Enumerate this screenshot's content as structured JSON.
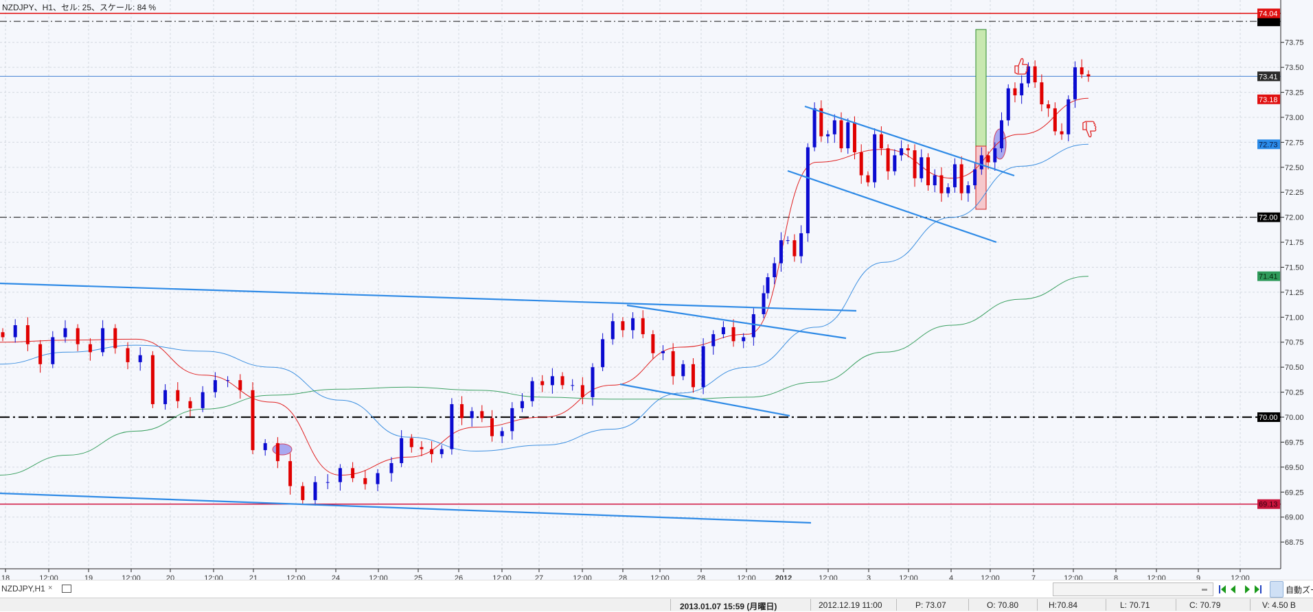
{
  "chart_title": "NZDJPY、H1、セル: 25、スケール: 84 %",
  "colors": {
    "background": "#f5f7fc",
    "up_candle": "#0a0ad0",
    "down_candle": "#e00000",
    "ma_fast": "#e02020",
    "ma_mid": "#3a8ee0",
    "ma_slow": "#3aa060",
    "trendline": "#2e8ae6"
  },
  "chart_data": {
    "type": "candlestick",
    "symbol": "NZDJPY",
    "timeframe": "H1",
    "ylim": [
      68.6,
      74.1
    ],
    "grid": true,
    "price_ticks": [
      "68.75",
      "69.00",
      "69.25",
      "69.50",
      "69.75",
      "70.00",
      "70.25",
      "70.50",
      "70.75",
      "71.00",
      "71.25",
      "71.50",
      "71.75",
      "72.00",
      "72.25",
      "72.50",
      "72.75",
      "73.00",
      "73.25",
      "73.50",
      "73.75"
    ],
    "time_ticks": [
      "18",
      "12:00",
      "19",
      "12:00",
      "20",
      "12:00",
      "21",
      "12:00",
      "24",
      "12:00",
      "25",
      "26",
      "12:00",
      "27",
      "12:00",
      "28",
      "12:00",
      "28",
      "12:00",
      "2012",
      "12:00",
      "3",
      "12:00",
      "4",
      "12:00",
      "7",
      "12:00",
      "8",
      "12:00",
      "9",
      "12:00"
    ],
    "closes": [
      70.8,
      70.92,
      70.73,
      70.53,
      70.8,
      70.89,
      70.73,
      70.65,
      70.89,
      70.69,
      70.55,
      70.62,
      70.13,
      70.27,
      70.16,
      70.09,
      70.25,
      70.37,
      70.37,
      70.27,
      69.67,
      69.74,
      69.56,
      69.31,
      69.17,
      69.35,
      69.35,
      69.49,
      69.39,
      69.33,
      69.44,
      69.54,
      69.79,
      69.7,
      69.68,
      69.63,
      69.68,
      70.13,
      69.99,
      70.06,
      69.99,
      69.81,
      69.86,
      70.09,
      70.16,
      70.36,
      70.32,
      70.41,
      70.32,
      70.32,
      70.2,
      70.5,
      70.78,
      70.96,
      70.87,
      70.99,
      70.83,
      70.64,
      70.66,
      70.41,
      70.53,
      70.3,
      70.71,
      70.83,
      70.9,
      70.76,
      70.8,
      71.03,
      71.24,
      71.4,
      71.54,
      71.77,
      71.77,
      71.61,
      71.84,
      72.7,
      73.09,
      72.81,
      72.83,
      72.97,
      72.69,
      72.95,
      72.65,
      72.42,
      72.35,
      72.83,
      72.69,
      72.46,
      72.62,
      72.69,
      72.67,
      72.39,
      72.6,
      72.32,
      72.42,
      72.24,
      72.3,
      72.53,
      72.24,
      72.32,
      72.48,
      72.62,
      72.55,
      72.69,
      72.97,
      73.29,
      73.22,
      73.34,
      73.51,
      73.35,
      73.13,
      73.09,
      72.86,
      72.83,
      73.18,
      73.5,
      73.43,
      73.41
    ],
    "moving_averages": [
      {
        "color": "#e02020",
        "values": [
          70.75,
          70.77,
          70.78,
          70.42,
          70.15,
          69.42,
          69.6,
          69.9,
          70.0,
          70.32,
          70.7,
          70.83,
          72.55,
          72.68,
          72.39,
          72.83,
          73.19
        ]
      },
      {
        "color": "#3a8ee0",
        "values": [
          70.53,
          70.65,
          70.72,
          70.66,
          70.5,
          70.17,
          69.8,
          69.66,
          69.72,
          69.88,
          70.24,
          70.5,
          70.9,
          71.55,
          72.0,
          72.51,
          72.73
        ]
      },
      {
        "color": "#3aa060",
        "values": [
          69.42,
          69.62,
          69.86,
          70.08,
          70.22,
          70.28,
          70.3,
          70.27,
          70.2,
          70.18,
          70.18,
          70.2,
          70.35,
          70.65,
          70.92,
          71.18,
          71.41
        ]
      }
    ],
    "horizontal_lines": [
      {
        "price": 74.04,
        "style": "solid",
        "color": "#e00000"
      },
      {
        "price": 73.96,
        "style": "dashdot",
        "color": "#111111"
      },
      {
        "price": 73.41,
        "style": "solid",
        "color": "#3a7ad0"
      },
      {
        "price": 72.0,
        "style": "dashdot",
        "color": "#111111"
      },
      {
        "price": 70.0,
        "style": "dashdot-bold",
        "color": "#111111"
      },
      {
        "price": 69.13,
        "style": "solid",
        "color": "#d0103c"
      }
    ],
    "price_labels": [
      {
        "text": "74.04",
        "price": 74.04,
        "bg": "#e01010",
        "fg": "#ffffff"
      },
      {
        "text": "73.41",
        "price": 73.41,
        "bg": "#2a2a2a",
        "fg": "#ffffff"
      },
      {
        "text": "73.18",
        "price": 73.18,
        "bg": "#e01010",
        "fg": "#ffffff"
      },
      {
        "text": "72.73",
        "price": 72.73,
        "bg": "#2a8ae8",
        "fg": "#0a1a40"
      },
      {
        "text": "72.00",
        "price": 72.0,
        "bg": "#000000",
        "fg": "#ffffff"
      },
      {
        "text": "71.41",
        "price": 71.41,
        "bg": "#2e9a5a",
        "fg": "#0a2a10"
      },
      {
        "text": "70.00",
        "price": 70.0,
        "bg": "#000000",
        "fg": "#ffffff"
      },
      {
        "text": "69.13",
        "price": 69.13,
        "bg": "#c8143c",
        "fg": "#300010"
      }
    ]
  },
  "tab": {
    "label": "NZDJPY,H1",
    "close": "×"
  },
  "toolbar": {
    "auto_zoom_label": "自動ズーム"
  },
  "status": {
    "current_time": "2013.01.07 15:59 (月曜日)",
    "cursor_time": "2012.12.19 11:00",
    "price": "P: 73.07",
    "open": "O: 70.80",
    "high": "H:70.84",
    "low": "L: 70.71",
    "close": "C: 70.79",
    "volume": "V: 4.50 B"
  }
}
